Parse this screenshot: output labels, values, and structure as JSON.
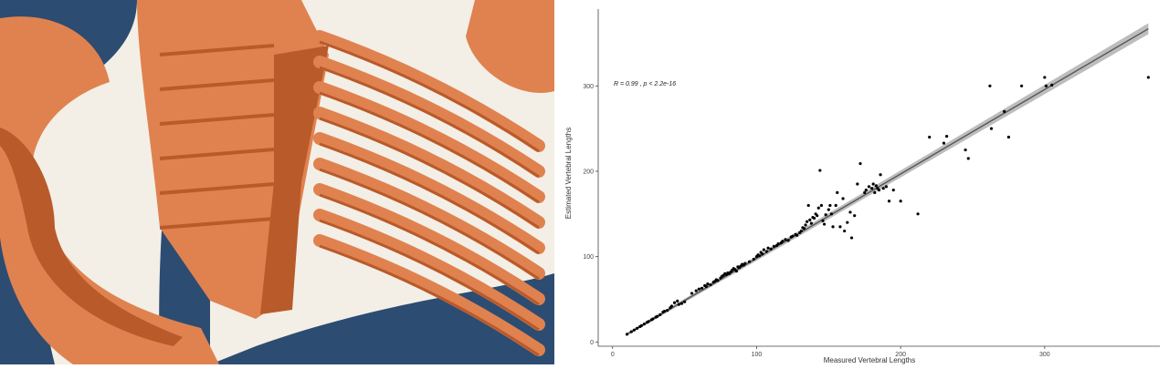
{
  "photo": {
    "colors": {
      "matrix": "#f3efe6",
      "bone": "#e0824f",
      "bone_dark": "#b95a2b",
      "background": "#2c4c72"
    }
  },
  "chart_data": {
    "type": "scatter",
    "xlabel": "Measured Vertebral Lengths",
    "ylabel": "Estimated Vertebral Lengths",
    "annotation": "R = 0.99 , p < 2.2e-16",
    "xlim": [
      -10,
      380
    ],
    "ylim": [
      -5,
      390
    ],
    "xticks": [
      0,
      100,
      200,
      300
    ],
    "yticks": [
      0,
      100,
      200,
      300
    ],
    "grid": false,
    "fit": {
      "type": "linear",
      "x": [
        10,
        372
      ],
      "y": [
        9,
        367
      ],
      "ci_band": true
    },
    "points": {
      "x": [
        10,
        13,
        15,
        17,
        19,
        20,
        22,
        24,
        25,
        27,
        28,
        30,
        31,
        33,
        35,
        36,
        38,
        40,
        41,
        43,
        45,
        46,
        48,
        50,
        55,
        58,
        60,
        62,
        64,
        65,
        66,
        68,
        70,
        71,
        72,
        73,
        75,
        76,
        77,
        78,
        79,
        80,
        81,
        82,
        83,
        84,
        85,
        86,
        87,
        88,
        89,
        90,
        91,
        92,
        95,
        98,
        100,
        101,
        102,
        103,
        104,
        105,
        107,
        108,
        110,
        112,
        114,
        115,
        117,
        118,
        120,
        122,
        124,
        125,
        127,
        128,
        130,
        131,
        132,
        133,
        134,
        135,
        136,
        137,
        138,
        139,
        140,
        141,
        142,
        143,
        144,
        145,
        146,
        147,
        148,
        150,
        151,
        152,
        153,
        155,
        156,
        158,
        160,
        161,
        163,
        165,
        166,
        168,
        170,
        172,
        175,
        176,
        178,
        180,
        181,
        182,
        183,
        184,
        185,
        186,
        188,
        190,
        192,
        195,
        200,
        212,
        220,
        230,
        232,
        245,
        247,
        262,
        263,
        272,
        275,
        284,
        300,
        301,
        305,
        372
      ],
      "y": [
        9,
        12,
        14,
        16,
        18,
        19,
        21,
        23,
        24,
        26,
        27,
        29,
        30,
        32,
        35,
        36,
        37,
        40,
        42,
        46,
        48,
        44,
        45,
        47,
        57,
        60,
        62,
        63,
        66,
        65,
        68,
        67,
        70,
        71,
        73,
        72,
        75,
        77,
        78,
        80,
        79,
        81,
        80,
        82,
        84,
        86,
        85,
        83,
        88,
        87,
        89,
        91,
        90,
        92,
        94,
        97,
        100,
        102,
        101,
        105,
        103,
        108,
        106,
        110,
        109,
        112,
        113,
        115,
        116,
        118,
        120,
        119,
        123,
        124,
        126,
        125,
        128,
        130,
        134,
        133,
        137,
        141,
        160,
        143,
        139,
        146,
        145,
        150,
        148,
        157,
        201,
        160,
        142,
        138,
        149,
        155,
        160,
        150,
        135,
        160,
        175,
        135,
        168,
        130,
        140,
        152,
        122,
        148,
        185,
        209,
        175,
        178,
        182,
        180,
        185,
        175,
        183,
        180,
        178,
        196,
        180,
        182,
        165,
        178,
        165,
        150,
        240,
        233,
        241,
        225,
        215,
        300,
        250,
        270,
        240,
        300,
        310,
        300,
        301,
        310
      ]
    }
  }
}
